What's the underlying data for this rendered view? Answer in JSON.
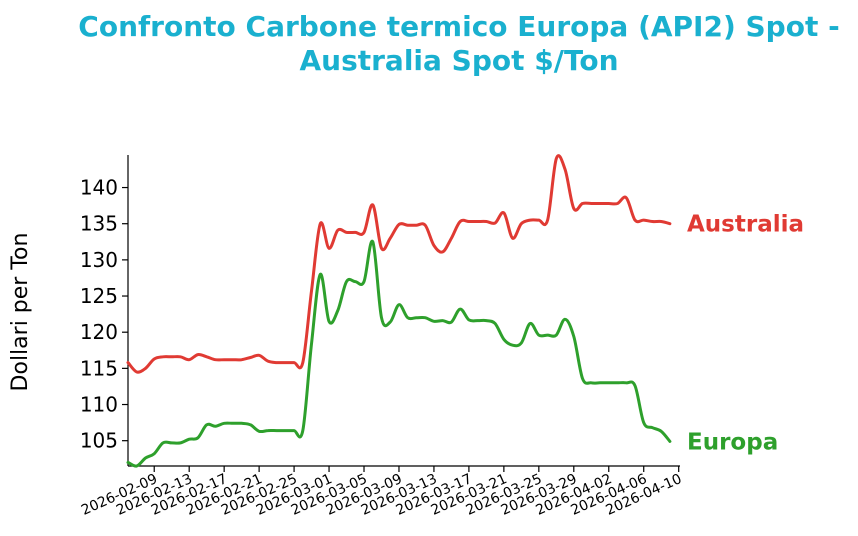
{
  "chart_data": {
    "type": "line",
    "title": "Confronto Carbone termico Europa (API2) Spot - Australia Spot $/Ton",
    "xlabel": "",
    "ylabel": "Dollari per Ton",
    "ylim": [
      101.5,
      144.5
    ],
    "yticks": [
      105,
      110,
      115,
      120,
      125,
      130,
      135,
      140
    ],
    "xticks": [
      "2026-02-09",
      "2026-02-13",
      "2026-02-17",
      "2026-02-21",
      "2026-02-25",
      "2026-03-01",
      "2026-03-05",
      "2026-03-09",
      "2026-03-13",
      "2026-03-17",
      "2026-03-21",
      "2026-03-25",
      "2026-03-29",
      "2026-04-02",
      "2026-04-06",
      "2026-04-10"
    ],
    "x": [
      "2026-02-06",
      "2026-02-07",
      "2026-02-08",
      "2026-02-09",
      "2026-02-10",
      "2026-02-11",
      "2026-02-12",
      "2026-02-13",
      "2026-02-14",
      "2026-02-15",
      "2026-02-16",
      "2026-02-17",
      "2026-02-18",
      "2026-02-19",
      "2026-02-20",
      "2026-02-21",
      "2026-02-22",
      "2026-02-23",
      "2026-02-24",
      "2026-02-25",
      "2026-02-26",
      "2026-02-27",
      "2026-02-28",
      "2026-03-01",
      "2026-03-02",
      "2026-03-03",
      "2026-03-04",
      "2026-03-05",
      "2026-03-06",
      "2026-03-07",
      "2026-03-08",
      "2026-03-09",
      "2026-03-10",
      "2026-03-11",
      "2026-03-12",
      "2026-03-13",
      "2026-03-14",
      "2026-03-15",
      "2026-03-16",
      "2026-03-17",
      "2026-03-18",
      "2026-03-19",
      "2026-03-20",
      "2026-03-21",
      "2026-03-22",
      "2026-03-23",
      "2026-03-24",
      "2026-03-25",
      "2026-03-26",
      "2026-03-27",
      "2026-03-28",
      "2026-03-29",
      "2026-03-30",
      "2026-03-31",
      "2026-04-01",
      "2026-04-02",
      "2026-04-03",
      "2026-04-04",
      "2026-04-05",
      "2026-04-06",
      "2026-04-07",
      "2026-04-08",
      "2026-04-09"
    ],
    "series": [
      {
        "name": "Australia",
        "color": "#e03a33",
        "values": [
          115.8,
          114.5,
          115.0,
          116.3,
          116.6,
          116.6,
          116.6,
          116.2,
          116.9,
          116.6,
          116.2,
          116.2,
          116.2,
          116.2,
          116.5,
          116.8,
          116.0,
          115.8,
          115.8,
          115.8,
          115.8,
          125.8,
          135.0,
          131.6,
          134.1,
          133.8,
          133.8,
          133.8,
          137.6,
          131.6,
          133.0,
          134.9,
          134.8,
          134.8,
          134.8,
          132.0,
          131.1,
          133.0,
          135.3,
          135.3,
          135.3,
          135.3,
          135.1,
          136.5,
          133.0,
          135.0,
          135.5,
          135.5,
          135.5,
          144.0,
          142.5,
          137.1,
          137.8,
          137.8,
          137.8,
          137.8,
          137.8,
          138.6,
          135.5,
          135.5,
          135.3,
          135.3,
          135.0
        ]
      },
      {
        "name": "Europa",
        "color": "#2ea02c",
        "values": [
          102.0,
          101.5,
          102.6,
          103.2,
          104.7,
          104.7,
          104.7,
          105.2,
          105.4,
          107.2,
          107.0,
          107.4,
          107.4,
          107.4,
          107.2,
          106.3,
          106.4,
          106.4,
          106.4,
          106.4,
          106.4,
          118.5,
          128.0,
          121.5,
          123.0,
          127.0,
          127.0,
          127.0,
          132.5,
          122.0,
          121.4,
          123.8,
          122.0,
          122.0,
          122.0,
          121.5,
          121.6,
          121.4,
          123.2,
          121.7,
          121.6,
          121.6,
          121.2,
          119.0,
          118.2,
          118.5,
          121.2,
          119.6,
          119.6,
          119.6,
          121.8,
          119.4,
          113.6,
          113.0,
          113.0,
          113.0,
          113.0,
          113.0,
          112.6,
          107.5,
          106.8,
          106.3,
          104.9
        ]
      }
    ],
    "legend": "right, labels at line ends",
    "grid": false
  }
}
